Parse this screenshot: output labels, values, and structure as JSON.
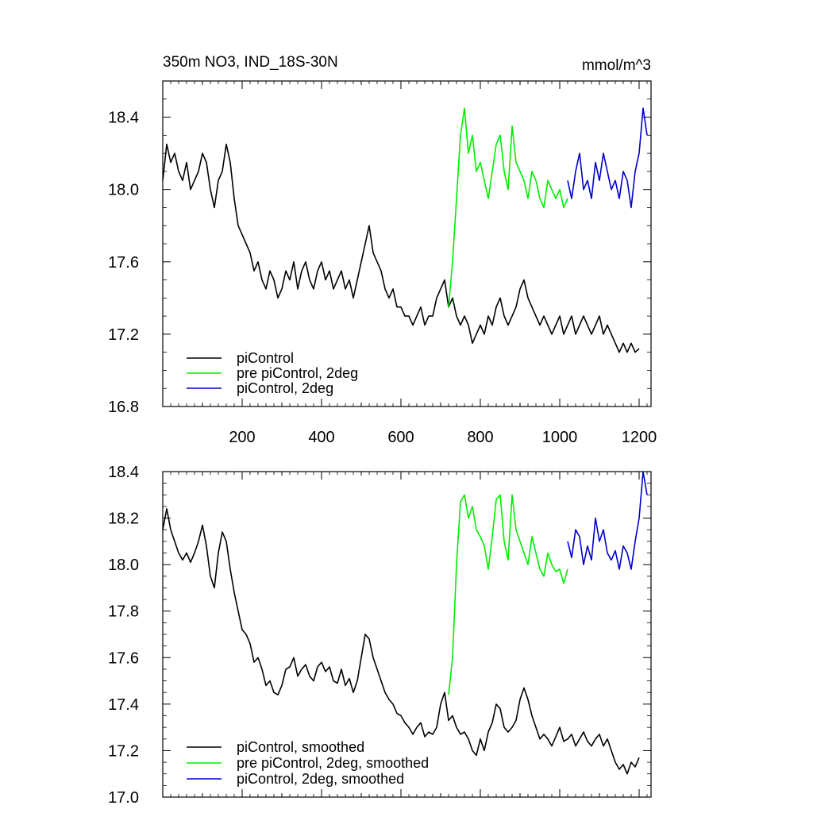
{
  "figure": {
    "title_left": "350m NO3, IND_18S-30N",
    "title_right": "mmol/m^3"
  },
  "chart_data": [
    {
      "type": "line",
      "xlim": [
        0,
        1230
      ],
      "ylim": [
        16.8,
        18.6
      ],
      "x_ticks": [
        200,
        400,
        600,
        800,
        1000,
        1200
      ],
      "x_tick_labels": [
        "200",
        "400",
        "600",
        "800",
        "1000",
        "1200"
      ],
      "y_ticks": [
        16.8,
        17.2,
        17.6,
        18.0,
        18.4
      ],
      "y_tick_labels": [
        "16.8",
        "17.2",
        "17.6",
        "18.0",
        "18.4"
      ],
      "legend_position": "bottom-left",
      "series": [
        {
          "name": "piControl",
          "color": "#000000",
          "x": [
            0,
            10,
            20,
            30,
            40,
            50,
            60,
            70,
            80,
            90,
            100,
            110,
            120,
            130,
            140,
            150,
            160,
            170,
            180,
            190,
            200,
            210,
            220,
            230,
            240,
            250,
            260,
            270,
            280,
            290,
            300,
            310,
            320,
            330,
            340,
            350,
            360,
            370,
            380,
            390,
            400,
            410,
            420,
            430,
            440,
            450,
            460,
            470,
            480,
            490,
            500,
            510,
            520,
            530,
            540,
            550,
            560,
            570,
            580,
            590,
            600,
            610,
            620,
            630,
            640,
            650,
            660,
            670,
            680,
            690,
            700,
            710,
            720,
            730,
            740,
            750,
            760,
            770,
            780,
            790,
            800,
            810,
            820,
            830,
            840,
            850,
            860,
            870,
            880,
            890,
            900,
            910,
            920,
            930,
            940,
            950,
            960,
            970,
            980,
            990,
            1000,
            1010,
            1020,
            1030,
            1040,
            1050,
            1060,
            1070,
            1080,
            1090,
            1100,
            1110,
            1120,
            1130,
            1140,
            1150,
            1160,
            1170,
            1180,
            1190,
            1200
          ],
          "y": [
            18.05,
            18.25,
            18.15,
            18.2,
            18.1,
            18.05,
            18.15,
            18.0,
            18.05,
            18.1,
            18.2,
            18.15,
            18.0,
            17.9,
            18.05,
            18.1,
            18.25,
            18.15,
            17.95,
            17.8,
            17.75,
            17.7,
            17.65,
            17.55,
            17.6,
            17.5,
            17.45,
            17.55,
            17.5,
            17.4,
            17.45,
            17.55,
            17.5,
            17.6,
            17.45,
            17.55,
            17.6,
            17.5,
            17.45,
            17.55,
            17.6,
            17.5,
            17.55,
            17.45,
            17.5,
            17.55,
            17.45,
            17.5,
            17.4,
            17.5,
            17.6,
            17.7,
            17.8,
            17.65,
            17.6,
            17.55,
            17.45,
            17.4,
            17.45,
            17.35,
            17.35,
            17.3,
            17.3,
            17.25,
            17.3,
            17.35,
            17.25,
            17.3,
            17.3,
            17.4,
            17.45,
            17.5,
            17.35,
            17.4,
            17.3,
            17.25,
            17.3,
            17.25,
            17.15,
            17.2,
            17.25,
            17.2,
            17.3,
            17.25,
            17.35,
            17.4,
            17.3,
            17.25,
            17.3,
            17.35,
            17.45,
            17.5,
            17.4,
            17.35,
            17.3,
            17.25,
            17.3,
            17.25,
            17.2,
            17.25,
            17.3,
            17.2,
            17.25,
            17.3,
            17.2,
            17.25,
            17.3,
            17.25,
            17.2,
            17.25,
            17.3,
            17.2,
            17.25,
            17.2,
            17.15,
            17.1,
            17.15,
            17.1,
            17.15,
            17.1,
            17.12
          ]
        },
        {
          "name": "pre piControl, 2deg",
          "color": "#00ee00",
          "x": [
            720,
            730,
            740,
            750,
            760,
            770,
            780,
            790,
            800,
            810,
            820,
            830,
            840,
            850,
            860,
            870,
            880,
            890,
            900,
            910,
            920,
            930,
            940,
            950,
            960,
            970,
            980,
            990,
            1000,
            1010,
            1020
          ],
          "y": [
            17.35,
            17.6,
            17.95,
            18.3,
            18.45,
            18.2,
            18.3,
            18.1,
            18.15,
            18.05,
            17.95,
            18.1,
            18.25,
            18.3,
            18.1,
            18.0,
            18.35,
            18.15,
            18.1,
            18.05,
            17.95,
            18.1,
            18.05,
            17.95,
            17.9,
            18.05,
            18.0,
            17.95,
            18.0,
            17.9,
            17.95
          ]
        },
        {
          "name": "piControl, 2deg",
          "color": "#0000cc",
          "x": [
            1020,
            1030,
            1040,
            1050,
            1060,
            1070,
            1080,
            1090,
            1100,
            1110,
            1120,
            1130,
            1140,
            1150,
            1160,
            1170,
            1180,
            1190,
            1200,
            1210,
            1220
          ],
          "y": [
            18.05,
            17.95,
            18.1,
            18.2,
            18.0,
            18.05,
            17.95,
            18.15,
            18.05,
            18.2,
            18.1,
            18.0,
            18.05,
            17.95,
            18.1,
            18.05,
            17.9,
            18.1,
            18.2,
            18.45,
            18.3
          ]
        }
      ]
    },
    {
      "type": "line",
      "xlim": [
        0,
        1230
      ],
      "ylim": [
        17.0,
        18.4
      ],
      "x_ticks": [
        200,
        400,
        600,
        800,
        1000,
        1200
      ],
      "y_ticks": [
        17.0,
        17.2,
        17.4,
        17.6,
        17.8,
        18.0,
        18.2,
        18.4
      ],
      "y_tick_labels": [
        "17.0",
        "17.2",
        "17.4",
        "17.6",
        "17.8",
        "18.0",
        "18.2",
        "18.4"
      ],
      "legend_position": "bottom-left",
      "series": [
        {
          "name": "piControl, smoothed",
          "color": "#000000",
          "x": [
            0,
            10,
            20,
            30,
            40,
            50,
            60,
            70,
            80,
            90,
            100,
            110,
            120,
            130,
            140,
            150,
            160,
            170,
            180,
            190,
            200,
            210,
            220,
            230,
            240,
            250,
            260,
            270,
            280,
            290,
            300,
            310,
            320,
            330,
            340,
            350,
            360,
            370,
            380,
            390,
            400,
            410,
            420,
            430,
            440,
            450,
            460,
            470,
            480,
            490,
            500,
            510,
            520,
            530,
            540,
            550,
            560,
            570,
            580,
            590,
            600,
            610,
            620,
            630,
            640,
            650,
            660,
            670,
            680,
            690,
            700,
            710,
            720,
            730,
            740,
            750,
            760,
            770,
            780,
            790,
            800,
            810,
            820,
            830,
            840,
            850,
            860,
            870,
            880,
            890,
            900,
            910,
            920,
            930,
            940,
            950,
            960,
            970,
            980,
            990,
            1000,
            1010,
            1020,
            1030,
            1040,
            1050,
            1060,
            1070,
            1080,
            1090,
            1100,
            1110,
            1120,
            1130,
            1140,
            1150,
            1160,
            1170,
            1180,
            1190,
            1200
          ],
          "y": [
            18.15,
            18.24,
            18.15,
            18.1,
            18.05,
            18.02,
            18.05,
            18.01,
            18.05,
            18.1,
            18.17,
            18.08,
            17.95,
            17.9,
            18.05,
            18.14,
            18.1,
            17.98,
            17.88,
            17.8,
            17.72,
            17.7,
            17.66,
            17.58,
            17.6,
            17.55,
            17.48,
            17.5,
            17.45,
            17.44,
            17.48,
            17.55,
            17.56,
            17.6,
            17.52,
            17.55,
            17.57,
            17.52,
            17.5,
            17.56,
            17.58,
            17.54,
            17.56,
            17.5,
            17.49,
            17.55,
            17.48,
            17.51,
            17.45,
            17.5,
            17.6,
            17.7,
            17.68,
            17.6,
            17.55,
            17.5,
            17.45,
            17.42,
            17.4,
            17.36,
            17.35,
            17.32,
            17.3,
            17.27,
            17.3,
            17.32,
            17.26,
            17.28,
            17.27,
            17.3,
            17.4,
            17.45,
            17.33,
            17.35,
            17.3,
            17.27,
            17.28,
            17.25,
            17.2,
            17.18,
            17.25,
            17.2,
            17.28,
            17.32,
            17.4,
            17.38,
            17.3,
            17.28,
            17.3,
            17.33,
            17.42,
            17.47,
            17.42,
            17.35,
            17.3,
            17.25,
            17.27,
            17.25,
            17.22,
            17.26,
            17.3,
            17.24,
            17.25,
            17.27,
            17.22,
            17.25,
            17.28,
            17.24,
            17.22,
            17.25,
            17.27,
            17.22,
            17.25,
            17.2,
            17.15,
            17.12,
            17.14,
            17.1,
            17.15,
            17.13,
            17.17
          ]
        },
        {
          "name": "pre piControl, 2deg, smoothed",
          "color": "#00ee00",
          "x": [
            720,
            730,
            740,
            750,
            760,
            770,
            780,
            790,
            800,
            810,
            820,
            830,
            840,
            850,
            860,
            870,
            880,
            890,
            900,
            910,
            920,
            930,
            940,
            950,
            960,
            970,
            980,
            990,
            1000,
            1010,
            1020
          ],
          "y": [
            17.44,
            17.6,
            18.0,
            18.27,
            18.3,
            18.2,
            18.25,
            18.15,
            18.12,
            18.08,
            17.98,
            18.12,
            18.28,
            18.3,
            18.1,
            18.02,
            18.3,
            18.15,
            18.1,
            18.05,
            18.0,
            18.12,
            18.05,
            17.98,
            17.95,
            18.05,
            18.0,
            17.97,
            17.98,
            17.92,
            17.98
          ]
        },
        {
          "name": "piControl, 2deg, smoothed",
          "color": "#0000cc",
          "x": [
            1020,
            1030,
            1040,
            1050,
            1060,
            1070,
            1080,
            1090,
            1100,
            1110,
            1120,
            1130,
            1140,
            1150,
            1160,
            1170,
            1180,
            1190,
            1200,
            1210,
            1220
          ],
          "y": [
            18.1,
            18.03,
            18.15,
            18.12,
            18.0,
            18.08,
            18.02,
            18.2,
            18.1,
            18.15,
            18.05,
            18.02,
            18.06,
            17.98,
            18.08,
            18.05,
            17.98,
            18.1,
            18.2,
            18.4,
            18.3
          ]
        }
      ]
    }
  ]
}
